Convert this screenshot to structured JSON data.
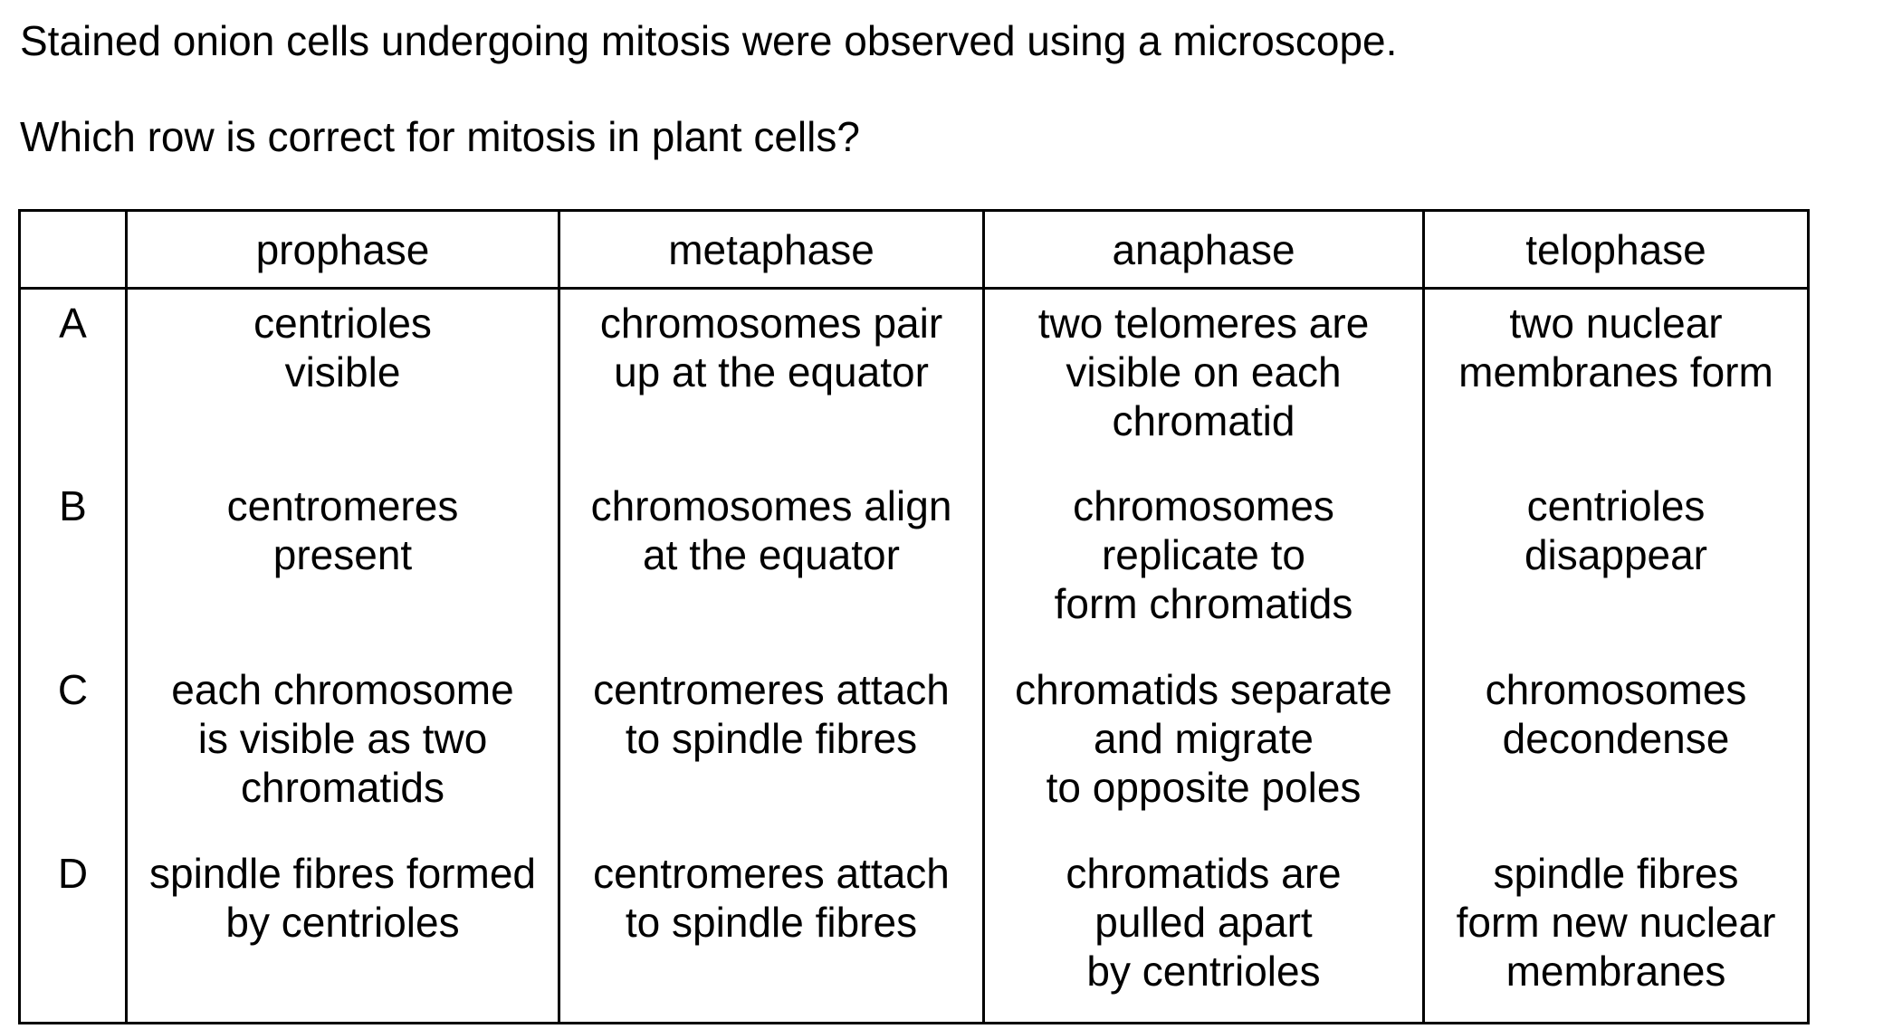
{
  "question": {
    "stem_line1": "Stained onion cells undergoing mitosis were observed using a microscope.",
    "stem_line2": "Which row is correct for mitosis in plant cells?"
  },
  "table": {
    "headers": [
      "",
      "prophase",
      "metaphase",
      "anaphase",
      "telophase"
    ],
    "rows": [
      {
        "letter": "A",
        "prophase": "centrioles\nvisible",
        "metaphase": "chromosomes pair\nup at the equator",
        "anaphase": "two telomeres are\nvisible on each\nchromatid",
        "telophase": "two nuclear\nmembranes form"
      },
      {
        "letter": "B",
        "prophase": "centromeres\npresent",
        "metaphase": "chromosomes align\nat the equator",
        "anaphase": "chromosomes\nreplicate to\nform chromatids",
        "telophase": "centrioles\ndisappear"
      },
      {
        "letter": "C",
        "prophase": "each chromosome\nis visible as two\nchromatids",
        "metaphase": "centromeres attach\nto spindle fibres",
        "anaphase": "chromatids separate\nand migrate\nto opposite poles",
        "telophase": "chromosomes\ndecondense"
      },
      {
        "letter": "D",
        "prophase": "spindle fibres formed\nby centrioles",
        "metaphase": "centromeres attach\nto spindle fibres",
        "anaphase": "chromatids are\npulled apart\nby centrioles",
        "telophase": "spindle fibres\nform new nuclear\nmembranes"
      }
    ]
  }
}
